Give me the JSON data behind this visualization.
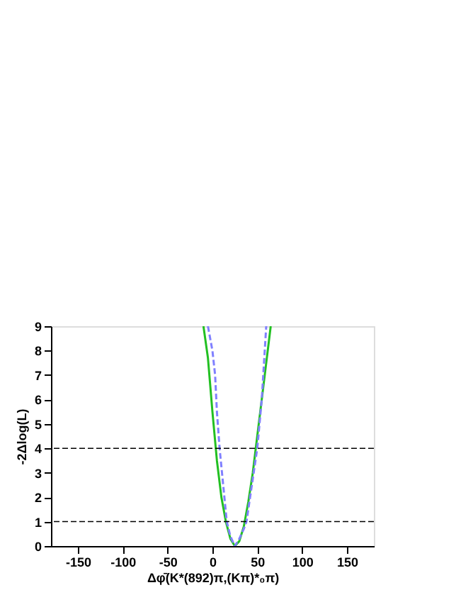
{
  "chart_data": {
    "type": "line",
    "xlabel": "Δφ̄(K*(892)π,(Kπ)*₀π)",
    "ylabel": "-2Δlog(L)",
    "xlim": [
      -180,
      180
    ],
    "ylim": [
      0,
      9
    ],
    "xticks": [
      -150,
      -100,
      -50,
      0,
      50,
      100,
      150
    ],
    "yticks": [
      0,
      1,
      2,
      3,
      4,
      5,
      6,
      7,
      8,
      9
    ],
    "grid": false,
    "series": [
      {
        "color": "#22c022",
        "line_style": "solid",
        "x": [
          -10,
          -5,
          0,
          5,
          10,
          15,
          20,
          25,
          30,
          35,
          40,
          45,
          50,
          55,
          60,
          65
        ],
        "values": [
          9,
          7.7,
          5.5,
          3.5,
          2,
          1,
          0.3,
          0,
          0.2,
          0.8,
          1.8,
          3,
          4.5,
          6,
          7.5,
          9
        ]
      },
      {
        "color": "#8080ff",
        "line_style": "dashed",
        "x": [
          -5,
          0,
          3,
          5,
          8,
          12,
          16,
          20,
          25,
          30,
          35,
          38,
          42,
          46,
          50,
          55,
          60
        ],
        "values": [
          9,
          8,
          7,
          5.5,
          4,
          2.5,
          1,
          0.4,
          0,
          0.3,
          0.7,
          1,
          2,
          3,
          4,
          6,
          9
        ]
      }
    ],
    "ref_lines": [
      {
        "axis": "y",
        "value": 4,
        "color": "#000000",
        "line_style": "dashed"
      },
      {
        "axis": "y",
        "value": 1,
        "color": "#000000",
        "line_style": "dashed"
      }
    ]
  }
}
